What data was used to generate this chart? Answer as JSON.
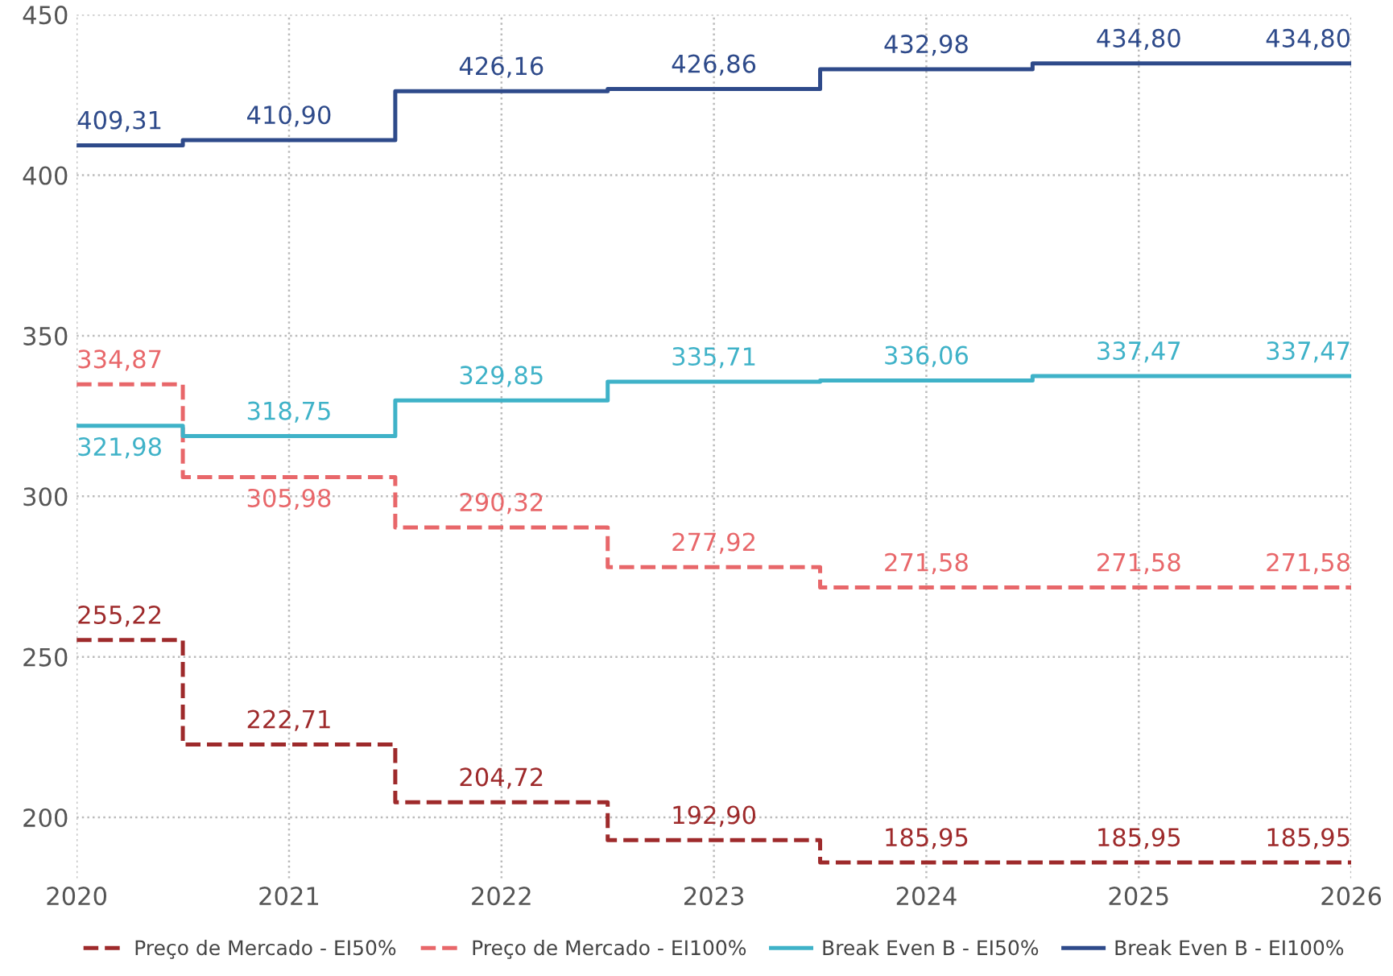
{
  "chart_data": {
    "type": "step",
    "x": [
      2020,
      2021,
      2022,
      2023,
      2024,
      2025,
      2026
    ],
    "series": [
      {
        "name": "Preço de Mercado - EI50%",
        "color": "#9e2a2b",
        "line_style": "dashed",
        "values": [
          255.22,
          222.71,
          204.72,
          192.9,
          185.95,
          185.95,
          185.95
        ],
        "value_labels": [
          "255,22",
          "222,71",
          "204,72",
          "192,90",
          "185,95",
          "185,95",
          "185,95"
        ]
      },
      {
        "name": "Preço de Mercado - EI100%",
        "color": "#e8676a",
        "line_style": "dashed",
        "values": [
          334.87,
          305.98,
          290.32,
          277.92,
          271.58,
          271.58,
          271.58
        ],
        "value_labels": [
          "334,87",
          "305,98",
          "290,32",
          "277,92",
          "271,58",
          "271,58",
          "271,58"
        ]
      },
      {
        "name": "Break Even B - EI50%",
        "color": "#3fb2c8",
        "line_style": "solid",
        "values": [
          321.98,
          318.75,
          329.85,
          335.71,
          336.06,
          337.47,
          337.47
        ],
        "value_labels": [
          "321,98",
          "318,75",
          "329,85",
          "335,71",
          "336,06",
          "337,47",
          "337,47"
        ]
      },
      {
        "name": "Break Even B - EI100%",
        "color": "#2e4a8a",
        "line_style": "solid",
        "values": [
          409.31,
          410.9,
          426.16,
          426.86,
          432.98,
          434.8,
          434.8
        ],
        "value_labels": [
          "409,31",
          "410,90",
          "426,16",
          "426,86",
          "432,98",
          "434,80",
          "434,80"
        ]
      }
    ],
    "xlim": [
      2020,
      2026
    ],
    "xticks": [
      2020,
      2021,
      2022,
      2023,
      2024,
      2025,
      2026
    ],
    "ylim": [
      181,
      450
    ],
    "yticks": [
      200,
      250,
      300,
      350,
      400,
      450
    ],
    "grid": true,
    "legend": "bottom"
  }
}
